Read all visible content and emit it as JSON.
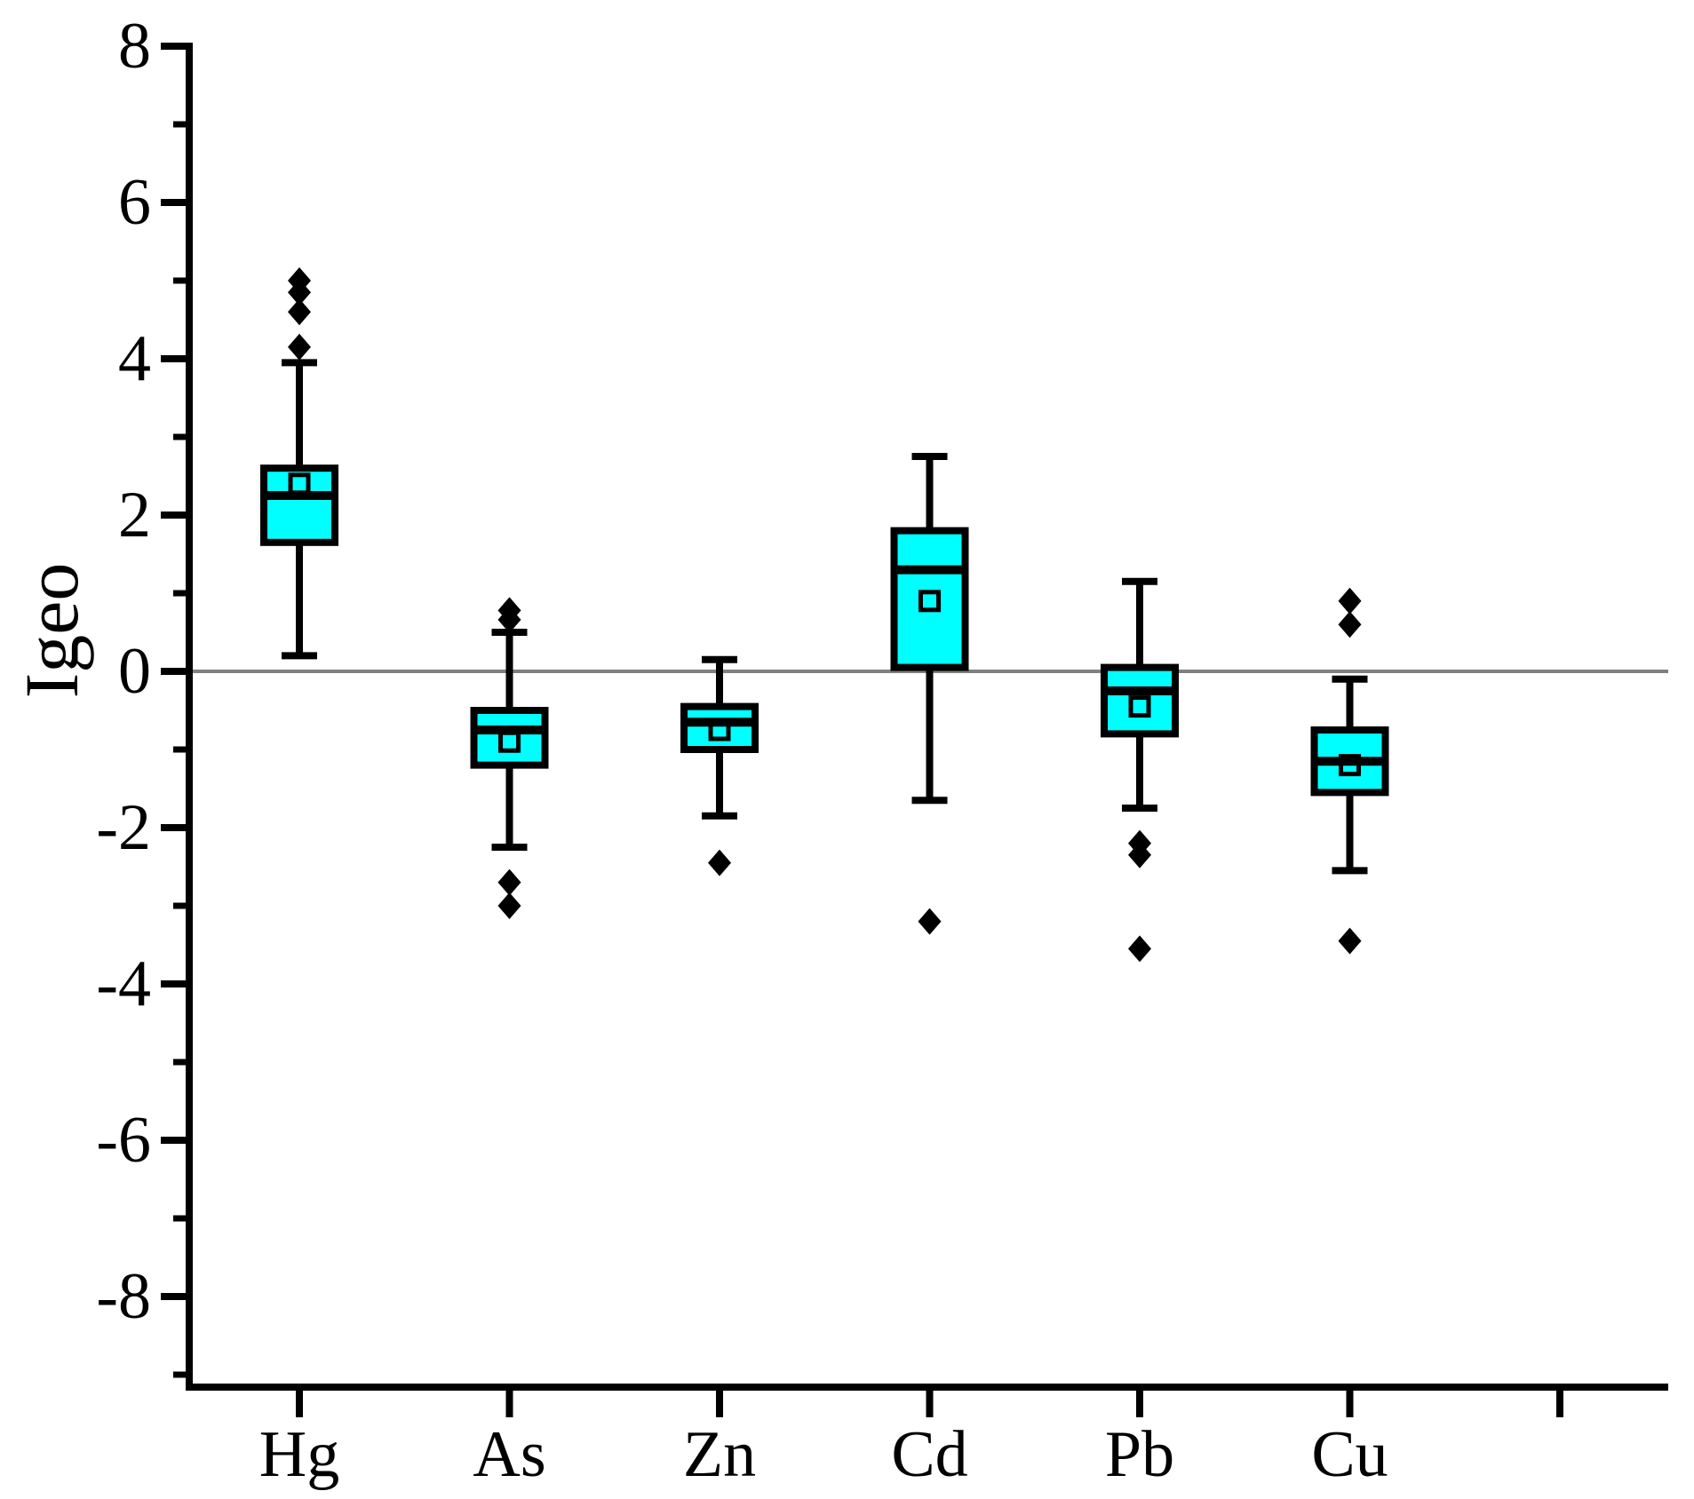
{
  "chart_data": {
    "type": "box",
    "ylabel": "Igeo",
    "ylim": [
      -9.2,
      8.2
    ],
    "grid": "horizontal-zero-line-only",
    "legend": "none",
    "y_axis": {
      "label": "Igeo",
      "major_ticks": [
        8,
        6,
        4,
        2,
        0,
        -2,
        -4,
        -6,
        -8
      ],
      "major_tick_labels": [
        "8",
        "6",
        "4",
        "2",
        "0",
        "-2",
        "-4",
        "-6",
        "-8"
      ],
      "minor_ticks": [
        7,
        5,
        3,
        1,
        -1,
        -3,
        -5,
        -7,
        -9
      ],
      "zero_reference_line": 0
    },
    "x_axis": {
      "categories": [
        "Hg",
        "As",
        "Zn",
        "Cd",
        "Pb",
        "Cu"
      ],
      "unlabeled_extra_tick": true
    },
    "categories": [
      "Hg",
      "As",
      "Zn",
      "Cd",
      "Pb",
      "Cu"
    ],
    "series": [
      {
        "name": "Hg",
        "whisker_low": 0.2,
        "q1": 1.65,
        "median": 2.25,
        "q3": 2.6,
        "whisker_high": 3.95,
        "mean": 2.4,
        "outliers": [
          4.15,
          4.6,
          4.85,
          5.0
        ]
      },
      {
        "name": "As",
        "whisker_low": -2.25,
        "q1": -1.2,
        "median": -0.75,
        "q3": -0.5,
        "whisker_high": 0.5,
        "mean": -0.9,
        "outliers": [
          0.78,
          0.66,
          -2.7,
          -3.0
        ]
      },
      {
        "name": "Zn",
        "whisker_low": -1.85,
        "q1": -1.0,
        "median": -0.65,
        "q3": -0.45,
        "whisker_high": 0.15,
        "mean": -0.75,
        "outliers": [
          -2.45
        ]
      },
      {
        "name": "Cd",
        "whisker_low": -1.65,
        "q1": 0.05,
        "median": 1.3,
        "q3": 1.8,
        "whisker_high": 2.75,
        "mean": 0.9,
        "outliers": [
          -3.2
        ]
      },
      {
        "name": "Pb",
        "whisker_low": -1.75,
        "q1": -0.8,
        "median": -0.25,
        "q3": 0.05,
        "whisker_high": 1.15,
        "mean": -0.45,
        "outliers": [
          -2.2,
          -2.35,
          -3.55
        ]
      },
      {
        "name": "Cu",
        "whisker_low": -2.55,
        "q1": -1.55,
        "median": -1.15,
        "q3": -0.75,
        "whisker_high": -0.1,
        "mean": -1.2,
        "outliers": [
          0.9,
          0.6,
          -3.45
        ]
      }
    ],
    "colors": {
      "box_fill": "#00FFFF",
      "box_border": "#000000",
      "whisker": "#000000",
      "median": "#000000",
      "mean_marker_border": "#000000",
      "outlier": "#000000",
      "zero_line": "#808080",
      "axis": "#000000",
      "text": "#000000",
      "background": "#FFFFFF"
    }
  }
}
